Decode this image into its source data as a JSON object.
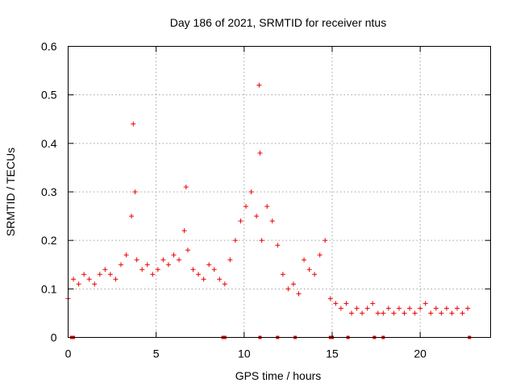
{
  "chart_data": {
    "type": "scatter",
    "title": "Day 186 of 2021, SRMTID for receiver ntus",
    "xlabel": "GPS time / hours",
    "ylabel": "SRMTID / TECUs",
    "xlim": [
      0,
      24
    ],
    "ylim": [
      0,
      0.6
    ],
    "x_ticks": [
      "0",
      "5",
      "10",
      "15",
      "20"
    ],
    "y_ticks": [
      "0",
      "0.1",
      "0.2",
      "0.3",
      "0.4",
      "0.5",
      "0.6"
    ],
    "grid": true,
    "marker": "+",
    "color": "#ee0000",
    "series": [
      {
        "name": "SRMTID",
        "x": [
          0.0,
          0.3,
          0.6,
          0.9,
          1.2,
          1.5,
          1.8,
          2.1,
          2.4,
          2.7,
          3.0,
          3.3,
          3.6,
          3.7,
          3.8,
          3.9,
          4.2,
          4.5,
          4.8,
          5.1,
          5.4,
          5.7,
          6.0,
          6.3,
          6.6,
          6.7,
          6.8,
          7.1,
          7.4,
          7.7,
          8.0,
          8.3,
          8.6,
          8.9,
          9.2,
          9.5,
          9.8,
          10.1,
          10.4,
          10.7,
          10.85,
          10.9,
          11.0,
          11.3,
          11.6,
          11.9,
          12.2,
          12.5,
          12.8,
          13.1,
          13.4,
          13.7,
          14.0,
          14.3,
          14.6,
          14.9,
          15.2,
          15.5,
          15.8,
          16.1,
          16.4,
          16.7,
          17.0,
          17.3,
          17.6,
          17.9,
          18.2,
          18.5,
          18.8,
          19.1,
          19.4,
          19.7,
          20.0,
          20.3,
          20.6,
          20.9,
          21.2,
          21.5,
          21.8,
          22.1,
          22.4,
          22.7
        ],
        "values": [
          0.08,
          0.12,
          0.11,
          0.13,
          0.12,
          0.11,
          0.13,
          0.14,
          0.13,
          0.12,
          0.15,
          0.17,
          0.25,
          0.44,
          0.3,
          0.16,
          0.14,
          0.15,
          0.13,
          0.14,
          0.16,
          0.15,
          0.17,
          0.16,
          0.22,
          0.31,
          0.18,
          0.14,
          0.13,
          0.12,
          0.15,
          0.14,
          0.12,
          0.11,
          0.16,
          0.2,
          0.24,
          0.27,
          0.3,
          0.25,
          0.52,
          0.38,
          0.2,
          0.27,
          0.24,
          0.19,
          0.13,
          0.1,
          0.11,
          0.09,
          0.16,
          0.14,
          0.13,
          0.17,
          0.2,
          0.08,
          0.07,
          0.06,
          0.07,
          0.05,
          0.06,
          0.05,
          0.06,
          0.07,
          0.05,
          0.05,
          0.06,
          0.05,
          0.06,
          0.05,
          0.06,
          0.05,
          0.06,
          0.07,
          0.05,
          0.06,
          0.05,
          0.06,
          0.05,
          0.06,
          0.05,
          0.06
        ]
      }
    ],
    "zero_markers_x": [
      0.2,
      0.3,
      8.8,
      8.9,
      10.9,
      11.9,
      12.9,
      14.9,
      15.0,
      15.9,
      17.4,
      17.9,
      22.8
    ]
  }
}
